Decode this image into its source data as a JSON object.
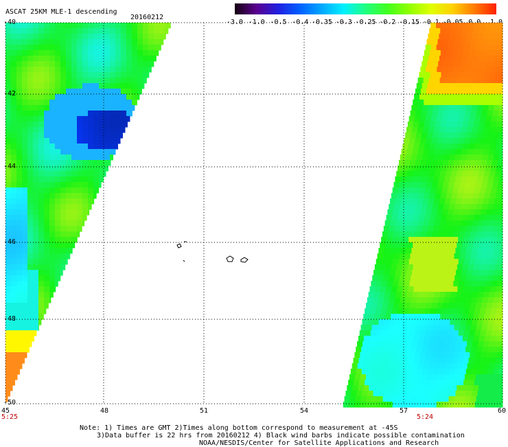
{
  "header": {
    "title": "ASCAT 25KM MLE-1 descending",
    "date": "20160212"
  },
  "colorbar": {
    "labels": [
      "-3.0",
      "-1.0",
      "-0.5",
      "-0.4",
      "-0.35",
      "-0.3",
      "-0.25",
      "-0.2",
      "-0.15",
      "-0.1",
      "-0.05",
      "0.0",
      "1.0"
    ],
    "colors": [
      "#140010",
      "#5a0090",
      "#2020e0",
      "#0060ff",
      "#00a8ff",
      "#00f0ff",
      "#20ff80",
      "#40ff20",
      "#90ff00",
      "#e0ff00",
      "#ffd000",
      "#ff7a00",
      "#ff2000"
    ]
  },
  "axes": {
    "lat_labels": [
      "-40",
      "-42",
      "-44",
      "-46",
      "-48",
      "-50"
    ],
    "lon_labels": [
      "45",
      "48",
      "51",
      "54",
      "57",
      "60"
    ]
  },
  "pass_times": {
    "left": "5:25",
    "right": "5:24"
  },
  "notes": {
    "line1": "Note: 1) Times are GMT 2)Times along bottom correspond to measurement at -45S",
    "line2": "3)Data buffer is 22 hrs from 20160212 4) Black wind barbs indicate possible contamination",
    "line3": "NOAA/NESDIS/Center for Satellite Applications and Research"
  }
}
